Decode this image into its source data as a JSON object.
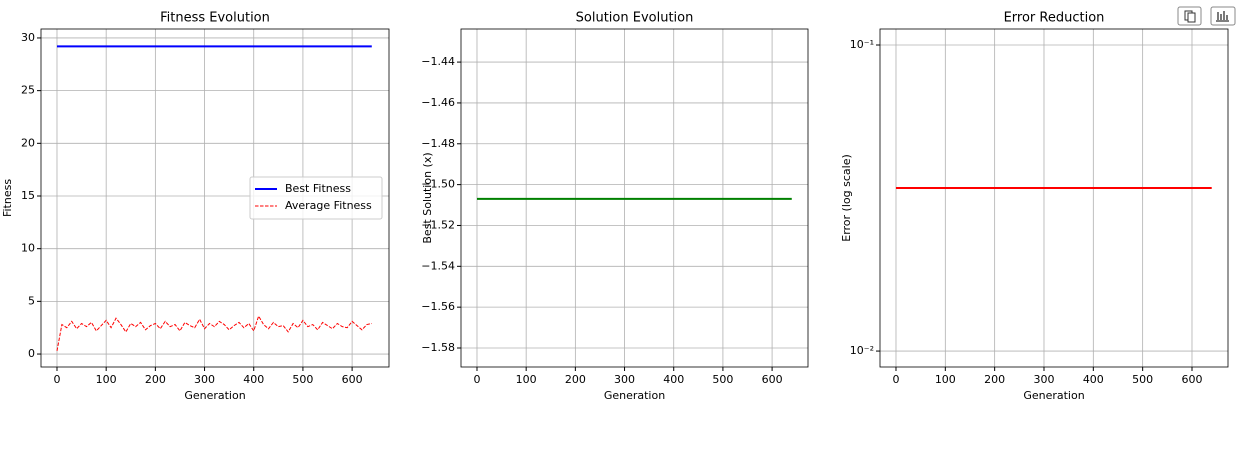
{
  "chart_data": [
    {
      "type": "line",
      "title": "Fitness Evolution",
      "x_label": "Generation",
      "y_label": "Fitness",
      "x": [
        0,
        10,
        20,
        30,
        40,
        50,
        60,
        70,
        80,
        90,
        100,
        110,
        120,
        130,
        140,
        150,
        160,
        170,
        180,
        190,
        200,
        210,
        220,
        230,
        240,
        250,
        260,
        270,
        280,
        290,
        300,
        310,
        320,
        330,
        340,
        350,
        360,
        370,
        380,
        390,
        400,
        410,
        420,
        430,
        440,
        450,
        460,
        470,
        480,
        490,
        500,
        510,
        520,
        530,
        540,
        550,
        560,
        570,
        580,
        590,
        600,
        610,
        620,
        630,
        640
      ],
      "series": [
        {
          "name": "Best Fitness",
          "color": "#0000ff",
          "linestyle": "solid",
          "values": [
            29.2,
            29.2,
            29.2,
            29.2,
            29.2,
            29.2,
            29.2,
            29.2,
            29.2,
            29.2,
            29.2,
            29.2,
            29.2,
            29.2,
            29.2,
            29.2,
            29.2,
            29.2,
            29.2,
            29.2,
            29.2,
            29.2,
            29.2,
            29.2,
            29.2,
            29.2,
            29.2,
            29.2,
            29.2,
            29.2,
            29.2,
            29.2,
            29.2,
            29.2,
            29.2,
            29.2,
            29.2,
            29.2,
            29.2,
            29.2,
            29.2,
            29.2,
            29.2,
            29.2,
            29.2,
            29.2,
            29.2,
            29.2,
            29.2,
            29.2,
            29.2,
            29.2,
            29.2,
            29.2,
            29.2,
            29.2,
            29.2,
            29.2,
            29.2,
            29.2,
            29.2,
            29.2,
            29.2,
            29.2,
            29.2
          ]
        },
        {
          "name": "Average Fitness",
          "color": "#ff0000",
          "linestyle": "dashed",
          "values": [
            0.3,
            2.8,
            2.5,
            3.1,
            2.4,
            2.9,
            2.6,
            3.0,
            2.2,
            2.7,
            3.2,
            2.5,
            3.4,
            2.8,
            2.1,
            2.9,
            2.6,
            3.0,
            2.3,
            2.7,
            2.9,
            2.4,
            3.1,
            2.6,
            2.8,
            2.2,
            3.0,
            2.7,
            2.5,
            3.3,
            2.4,
            2.9,
            2.6,
            3.1,
            2.8,
            2.3,
            2.7,
            3.0,
            2.5,
            2.9,
            2.2,
            3.6,
            2.8,
            2.4,
            3.0,
            2.6,
            2.7,
            2.1,
            2.9,
            2.5,
            3.2,
            2.6,
            2.8,
            2.3,
            3.0,
            2.7,
            2.4,
            2.9,
            2.6,
            2.5,
            3.1,
            2.7,
            2.3,
            2.8,
            2.9
          ]
        }
      ],
      "xlim": [
        -32.5,
        675
      ],
      "xticks": [
        0,
        100,
        200,
        300,
        400,
        500,
        600
      ],
      "ylim": [
        -1.23,
        30.85
      ],
      "yticks": [
        0,
        5,
        10,
        15,
        20,
        25,
        30
      ],
      "grid": true,
      "legend": "center right"
    },
    {
      "type": "line",
      "title": "Solution Evolution",
      "x_label": "Generation",
      "y_label": "Best Solution (x)",
      "x": [
        0,
        640
      ],
      "series": [
        {
          "color": "#008000",
          "linestyle": "solid",
          "values": [
            -1.507,
            -1.507
          ]
        }
      ],
      "xlim": [
        -32.5,
        673
      ],
      "xticks": [
        0,
        100,
        200,
        300,
        400,
        500,
        600
      ],
      "ylim": [
        -1.5893,
        -1.4238
      ],
      "yticks": [
        {
          "value": -1.58,
          "label": "−1.58"
        },
        {
          "value": -1.56,
          "label": "−1.56"
        },
        {
          "value": -1.54,
          "label": "−1.54"
        },
        {
          "value": -1.52,
          "label": "−1.52"
        },
        {
          "value": -1.5,
          "label": "−1.50"
        },
        {
          "value": -1.48,
          "label": "−1.48"
        },
        {
          "value": -1.46,
          "label": "−1.46"
        },
        {
          "value": -1.44,
          "label": "−1.44"
        }
      ],
      "grid": true
    },
    {
      "type": "line",
      "title": "Error Reduction",
      "x_label": "Generation",
      "y_label": "Error (log scale)",
      "x": [
        0,
        640
      ],
      "series": [
        {
          "color": "#ff0000",
          "linestyle": "solid",
          "values": [
            0.0341,
            0.0341
          ]
        }
      ],
      "xlim": [
        -32.4,
        673
      ],
      "xticks": [
        0,
        100,
        200,
        300,
        400,
        500,
        600
      ],
      "ylim": [
        0.00887,
        0.1128
      ],
      "y_scale": "log",
      "yticks": [
        {
          "value": 0.01,
          "label": "10⁻²"
        },
        {
          "value": 0.1,
          "label": "10⁻¹"
        }
      ],
      "grid": true
    }
  ]
}
